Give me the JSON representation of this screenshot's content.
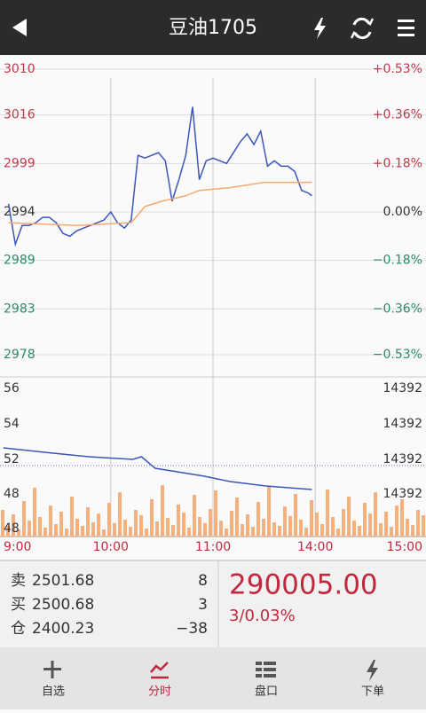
{
  "header": {
    "title": "豆油1705"
  },
  "chart_data": [
    {
      "type": "line",
      "left_labels": [
        "3010",
        "3016",
        "2999",
        "2994",
        "2989",
        "2983",
        "2978"
      ],
      "ylim": [
        -0.53,
        0.53
      ],
      "yticks": [
        {
          "value": 0.53,
          "label": "+0.53%"
        },
        {
          "value": 0.36,
          "label": "+0.36%"
        },
        {
          "value": 0.18,
          "label": "+0.18%"
        },
        {
          "value": 0,
          "label": "0.00%"
        },
        {
          "value": -0.18,
          "label": "−0.18%"
        },
        {
          "value": -0.36,
          "label": "−0.36%"
        },
        {
          "value": -0.53,
          "label": "−0.53%"
        }
      ],
      "xlim": [
        -5,
        245
      ],
      "xticks": [
        {
          "value": 0,
          "label": "9:00"
        },
        {
          "value": 60,
          "label": "10:00"
        },
        {
          "value": 120,
          "label": "11:00"
        },
        {
          "value": 180,
          "label": "14:00"
        },
        {
          "value": 240,
          "label": "15:00"
        }
      ],
      "series": [
        {
          "color": "#3c55b8",
          "x": [
            0,
            4,
            8,
            12,
            16,
            20,
            24,
            28,
            32,
            36,
            40,
            44,
            48,
            52,
            56,
            60,
            64,
            68,
            72,
            76,
            80,
            84,
            88,
            92,
            96,
            100,
            104,
            108,
            112,
            116,
            120,
            124,
            128,
            132,
            136,
            140,
            144,
            148,
            152,
            156,
            160,
            164,
            168,
            172,
            176,
            178
          ],
          "values": [
            0.03,
            -0.12,
            -0.05,
            -0.05,
            -0.04,
            -0.02,
            -0.02,
            -0.04,
            -0.08,
            -0.09,
            -0.07,
            -0.06,
            -0.05,
            -0.04,
            -0.03,
            0,
            -0.04,
            -0.06,
            -0.03,
            0.21,
            0.2,
            0.21,
            0.22,
            0.19,
            0.04,
            0.12,
            0.21,
            0.39,
            0.12,
            0.19,
            0.2,
            0.19,
            0.18,
            0.22,
            0.26,
            0.29,
            0.25,
            0.3,
            0.17,
            0.19,
            0.17,
            0.17,
            0.15,
            0.08,
            0.07,
            0.06
          ]
        },
        {
          "color": "#f5a870",
          "x": [
            0,
            40,
            72,
            80,
            90,
            104,
            112,
            130,
            150,
            178
          ],
          "values": [
            -0.04,
            -0.05,
            -0.04,
            0.02,
            0.04,
            0.06,
            0.08,
            0.09,
            0.11,
            0.11
          ]
        }
      ]
    },
    {
      "type": "bar",
      "color": "#f5b07e",
      "ylim": [
        0,
        60
      ],
      "left_labels": [
        "56",
        "54",
        "52",
        "48",
        "48"
      ],
      "right_labels": [
        "14392",
        "14392",
        "14392",
        "14392"
      ],
      "values": [
        30,
        12,
        25,
        8,
        40,
        18,
        55,
        22,
        10,
        35,
        14,
        28,
        9,
        45,
        20,
        12,
        33,
        16,
        26,
        8,
        38,
        15,
        50,
        19,
        11,
        30,
        24,
        9,
        42,
        17,
        58,
        21,
        13,
        36,
        27,
        10,
        47,
        22,
        15,
        31,
        52,
        18,
        9,
        29,
        44,
        14,
        25,
        11,
        39,
        20,
        56,
        16,
        12,
        34,
        23,
        48,
        19,
        10,
        41,
        27,
        14,
        53,
        22,
        9,
        31,
        45,
        18,
        12,
        38,
        26,
        50,
        15,
        28,
        11,
        35,
        42,
        20,
        13,
        30,
        24
      ],
      "overlay": {
        "type": "line",
        "color": "#3c55b8",
        "ylim": [
          47.65,
          56.65
        ],
        "x": [
          -3,
          21,
          47,
          73,
          78,
          86,
          99,
          115,
          130,
          151,
          178
        ],
        "values": [
          52.65,
          52.4,
          52.15,
          52,
          52.15,
          51.5,
          51.3,
          51.05,
          50.75,
          50.5,
          50.3
        ]
      }
    }
  ],
  "quote": {
    "rows": [
      [
        "卖",
        "2501.68",
        "8"
      ],
      [
        "买",
        "2500.68",
        "3"
      ],
      [
        "仓",
        "2400.23",
        "−38"
      ]
    ],
    "price": "290005.00",
    "change": "3/0.03%"
  },
  "tabs": [
    "自选",
    "分时",
    "盘口",
    "下单"
  ]
}
